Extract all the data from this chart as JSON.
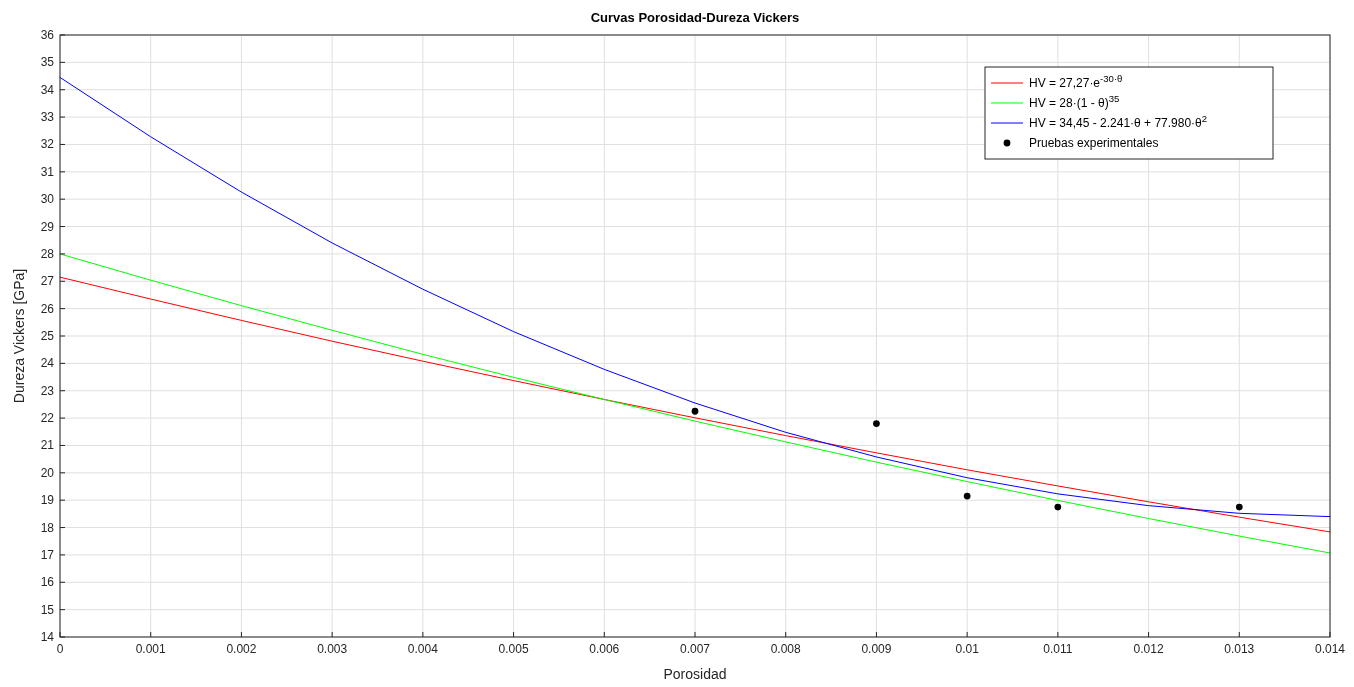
{
  "chart_data": {
    "type": "line",
    "title": "Curvas Porosidad-Dureza Vickers",
    "xlabel": "Porosidad",
    "ylabel": "Dureza Vickers [GPa]",
    "x": [
      0,
      0.001,
      0.002,
      0.003,
      0.004,
      0.005,
      0.006,
      0.007,
      0.008,
      0.009,
      0.01,
      0.011,
      0.012,
      0.013,
      0.014
    ],
    "series": [
      {
        "name": "HV = 27,27·e$^{-30·θ}$",
        "color": "#ff0000",
        "values": [
          27.15,
          26.35,
          25.57,
          24.81,
          24.08,
          23.37,
          22.68,
          22.01,
          21.36,
          20.73,
          20.11,
          19.52,
          18.94,
          18.38,
          17.84
        ]
      },
      {
        "name": "HV = 28·(1 - θ)$^{35}$",
        "color": "#00ff00",
        "values": [
          28,
          27.04,
          26.11,
          25.21,
          24.33,
          23.49,
          22.68,
          21.89,
          21.13,
          20.39,
          19.68,
          18.99,
          18.33,
          17.69,
          17.07
        ]
      },
      {
        "name": "HV = 34,45 - 2.241·θ + 77.980·θ$^{2}$",
        "color": "#0000ff",
        "values": [
          34.45,
          32.28,
          30.26,
          28.4,
          26.71,
          25.16,
          23.78,
          22.55,
          21.48,
          20.58,
          19.82,
          19.23,
          18.8,
          18.52,
          18.4
        ]
      },
      {
        "name": "Pruebas experimentales",
        "type": "scatter",
        "color": "#000000",
        "marker": "circle",
        "x": [
          0.007,
          0.009,
          0.01,
          0.011,
          0.013
        ],
        "values": [
          22.25,
          21.8,
          19.15,
          18.75,
          18.75
        ]
      }
    ],
    "xlim": [
      0,
      0.014
    ],
    "xticks": [
      0,
      0.001,
      0.002,
      0.003,
      0.004,
      0.005,
      0.006,
      0.007,
      0.008,
      0.009,
      0.01,
      0.011,
      0.012,
      0.013,
      0.014
    ],
    "ylim": [
      14,
      36
    ],
    "yticks": [
      14,
      15,
      16,
      17,
      18,
      19,
      20,
      21,
      22,
      23,
      24,
      25,
      26,
      27,
      28,
      29,
      30,
      31,
      32,
      33,
      34,
      35,
      36
    ],
    "grid": true,
    "legend": "top right",
    "marker": "none",
    "line_style": "solid"
  }
}
